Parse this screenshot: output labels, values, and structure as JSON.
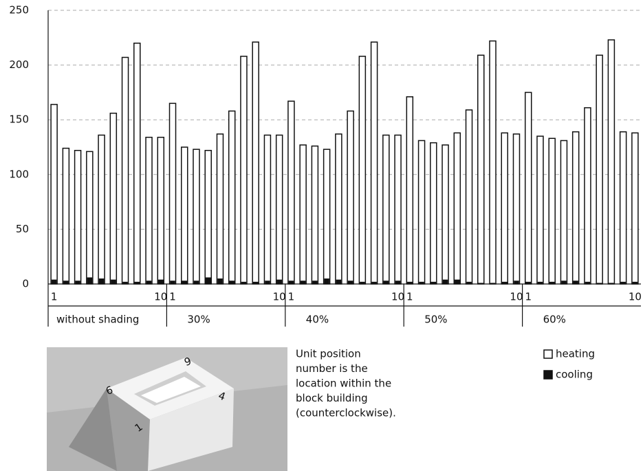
{
  "chart_data": {
    "type": "bar",
    "categories": [
      "1",
      null,
      null,
      null,
      null,
      null,
      null,
      null,
      null,
      "10",
      "1",
      null,
      null,
      null,
      null,
      null,
      null,
      null,
      null,
      "10",
      "1",
      null,
      null,
      null,
      null,
      null,
      null,
      null,
      null,
      "10",
      "1",
      null,
      null,
      null,
      null,
      null,
      null,
      null,
      null,
      "10",
      "1",
      null,
      null,
      null,
      null,
      null,
      null,
      null,
      null,
      "10"
    ],
    "groups": [
      "without shading",
      "30%",
      "40%",
      "50%",
      "60%"
    ],
    "series": [
      {
        "name": "heating",
        "color": "#ffffff",
        "values": [
          164,
          124,
          122,
          121,
          136,
          156,
          207,
          220,
          134,
          134,
          165,
          125,
          123,
          122,
          137,
          158,
          208,
          221,
          136,
          136,
          167,
          127,
          126,
          123,
          137,
          158,
          208,
          221,
          136,
          136,
          171,
          131,
          129,
          127,
          138,
          159,
          209,
          222,
          138,
          137,
          175,
          135,
          133,
          131,
          139,
          161,
          209,
          223,
          139,
          138
        ]
      },
      {
        "name": "cooling",
        "color": "#111111",
        "values": [
          4,
          3,
          3,
          6,
          5,
          4,
          2,
          2,
          3,
          4,
          3,
          3,
          3,
          6,
          5,
          3,
          2,
          2,
          3,
          4,
          3,
          3,
          3,
          5,
          4,
          3,
          2,
          2,
          3,
          3,
          2,
          2,
          2,
          4,
          4,
          2,
          1,
          1,
          2,
          3,
          2,
          2,
          2,
          3,
          3,
          2,
          1,
          1,
          2,
          2
        ]
      }
    ],
    "ylim": [
      0,
      250
    ],
    "yticks": [
      0,
      50,
      100,
      150,
      200,
      250
    ],
    "grid": true,
    "annotation": [
      "Unit position",
      "number is the",
      "location within the",
      "block building",
      "(counterclockwise)."
    ],
    "image_labels": [
      "1",
      "4",
      "6",
      "9"
    ]
  }
}
